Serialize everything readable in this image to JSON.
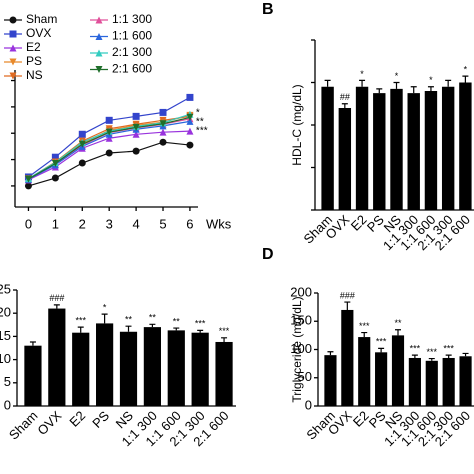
{
  "chart_data": [
    {
      "type": "line",
      "x_label": "Wks",
      "x": [
        0,
        1,
        2,
        3,
        4,
        5,
        6
      ],
      "xlim": [
        -0.5,
        6.3
      ],
      "xticks": [
        0,
        1,
        2,
        3,
        4,
        5,
        6
      ],
      "ylim": [
        0.2,
        5.4
      ],
      "yticks": [
        1,
        2,
        3,
        4,
        5
      ],
      "tick_labels": false,
      "annotations": [
        "*",
        "**",
        "***"
      ],
      "series": [
        {
          "name": "Sham",
          "color": "#111111",
          "marker": "circle",
          "values": [
            1.0,
            1.3,
            1.87,
            2.25,
            2.32,
            2.66,
            2.55
          ]
        },
        {
          "name": "OVX",
          "color": "#3344cc",
          "marker": "square",
          "values": [
            1.34,
            2.09,
            2.96,
            3.49,
            3.64,
            3.79,
            4.36
          ]
        },
        {
          "name": "E2",
          "color": "#9933dd",
          "marker": "triangle",
          "values": [
            1.23,
            1.72,
            2.43,
            2.81,
            2.96,
            3.04,
            3.08
          ]
        },
        {
          "name": "PS",
          "color": "#e8892a",
          "marker": "triangle-down",
          "values": [
            1.26,
            1.87,
            2.62,
            3.11,
            3.3,
            3.42,
            3.68
          ]
        },
        {
          "name": "NS",
          "color": "#e06a20",
          "marker": "triangle-down",
          "values": [
            1.27,
            1.91,
            2.7,
            3.17,
            3.34,
            3.49,
            3.64
          ]
        },
        {
          "name": "1:1 300",
          "color": "#e0509a",
          "marker": "triangle",
          "values": [
            1.24,
            1.83,
            2.55,
            3.02,
            3.2,
            3.34,
            3.55
          ]
        },
        {
          "name": "1:1 600",
          "color": "#2a66dd",
          "marker": "triangle",
          "values": [
            1.25,
            1.8,
            2.5,
            2.96,
            3.15,
            3.28,
            3.45
          ]
        },
        {
          "name": "2:1 300",
          "color": "#33ccc0",
          "marker": "triangle",
          "values": [
            1.28,
            1.89,
            2.66,
            3.08,
            3.26,
            3.4,
            3.72
          ]
        },
        {
          "name": "2:1 600",
          "color": "#1f6e2a",
          "marker": "triangle-down",
          "values": [
            1.26,
            1.85,
            2.58,
            3.04,
            3.22,
            3.36,
            3.6
          ]
        }
      ]
    },
    {
      "type": "bar",
      "label": "B",
      "y_label": "HDL-C (mg/dL)",
      "categories": [
        "Sham",
        "OVX",
        "E2",
        "PS",
        "NS",
        "1:1 300",
        "1:1 600",
        "2:1 300",
        "2:1 600"
      ],
      "values": [
        58,
        48,
        58,
        55,
        57,
        55,
        56,
        58,
        60
      ],
      "errors": [
        3,
        2,
        3,
        2,
        3,
        3,
        2,
        3,
        3
      ],
      "annotations": [
        null,
        "##",
        "*",
        null,
        "*",
        null,
        "*",
        null,
        "*"
      ],
      "color": "#000000",
      "ylim": [
        0,
        80
      ],
      "yticks": [
        0,
        20,
        40,
        60,
        80
      ],
      "tick_labels": false
    },
    {
      "type": "bar",
      "categories": [
        "Sham",
        "OVX",
        "E2",
        "PS",
        "NS",
        "1:1 300",
        "1:1 600",
        "2:1 300",
        "2:1 600"
      ],
      "values": [
        13,
        21,
        15.8,
        17.8,
        16,
        17,
        16.3,
        15.8,
        13.8
      ],
      "errors": [
        0.8,
        0.8,
        1.2,
        2,
        1.2,
        0.6,
        0.5,
        0.5,
        0.9
      ],
      "annotations": [
        null,
        "###",
        "***",
        "*",
        "**",
        "**",
        "**",
        "***",
        "***"
      ],
      "color": "#000000",
      "ylim": [
        0,
        25
      ],
      "yticks": [
        0,
        5,
        10,
        15,
        20,
        25
      ],
      "tick_labels": true
    },
    {
      "type": "bar",
      "label": "D",
      "y_label": "Triglyceride (mg/dL)",
      "categories": [
        "Sham",
        "OVX",
        "E2",
        "PS",
        "NS",
        "1:1 300",
        "1:1 600",
        "2:1 300",
        "2:1 600"
      ],
      "values": [
        90,
        170,
        122,
        95,
        125,
        85,
        80,
        85,
        88
      ],
      "errors": [
        6,
        14,
        8,
        7,
        10,
        5,
        4,
        5,
        5
      ],
      "annotations": [
        null,
        "###",
        "***",
        "***",
        "**",
        "***",
        "***",
        "***",
        null
      ],
      "color": "#000000",
      "ylim": [
        0,
        200
      ],
      "yticks": [
        0,
        50,
        100,
        150,
        200
      ],
      "tick_labels": true
    }
  ]
}
